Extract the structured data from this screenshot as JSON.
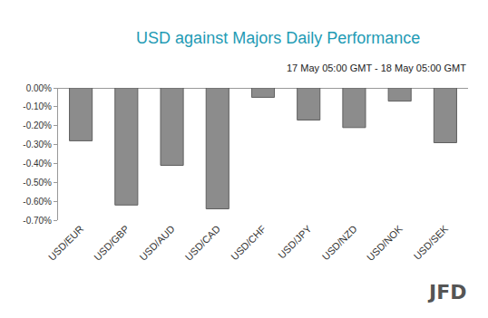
{
  "chart_data": {
    "type": "bar",
    "title": "USD against Majors Daily Performance",
    "subtitle": "17 May 05:00 GMT - 18 May 05:00 GMT",
    "annotation": "JFD",
    "categories": [
      "USD/EUR",
      "USD/GBP",
      "USD/AUD",
      "USD/CAD",
      "USD/CHF",
      "USD/JPY",
      "USD/NZD",
      "USD/NOK",
      "USD/SEK"
    ],
    "values": [
      -0.28,
      -0.62,
      -0.41,
      -0.64,
      -0.05,
      -0.17,
      -0.21,
      -0.07,
      -0.29
    ],
    "color": "#8c8c8c",
    "ylim": [
      -0.7,
      0
    ],
    "yticks": [
      {
        "value": 0,
        "label": "0.00%"
      },
      {
        "value": -0.1,
        "label": "-0.10%"
      },
      {
        "value": -0.2,
        "label": "-0.20%"
      },
      {
        "value": -0.3,
        "label": "-0.30%"
      },
      {
        "value": -0.4,
        "label": "-0.40%"
      },
      {
        "value": -0.5,
        "label": "-0.50%"
      },
      {
        "value": -0.6,
        "label": "-0.60%"
      },
      {
        "value": -0.7,
        "label": "-0.70%"
      }
    ],
    "grid": false
  }
}
